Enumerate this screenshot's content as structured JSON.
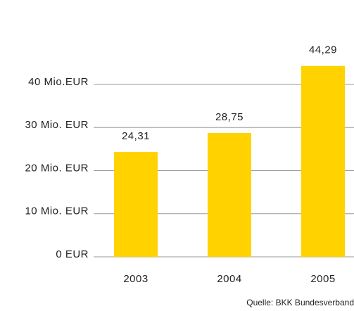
{
  "chart_data": {
    "type": "bar",
    "categories": [
      "2003",
      "2004",
      "2005"
    ],
    "values": [
      24.31,
      28.75,
      44.29
    ],
    "value_labels": [
      "24,31",
      "28,75",
      "44,29"
    ],
    "color": "#ffd200",
    "ylim": [
      0,
      50
    ],
    "yticks": [
      {
        "value": 0,
        "label": "0 EUR"
      },
      {
        "value": 10,
        "label": "10 Mio. EUR"
      },
      {
        "value": 20,
        "label": "20 Mio. EUR"
      },
      {
        "value": 30,
        "label": "30 Mio. EUR"
      },
      {
        "value": 40,
        "label": "40 Mio.EUR"
      }
    ],
    "grid": true,
    "source": "Quelle: BKK Bundesverband"
  }
}
